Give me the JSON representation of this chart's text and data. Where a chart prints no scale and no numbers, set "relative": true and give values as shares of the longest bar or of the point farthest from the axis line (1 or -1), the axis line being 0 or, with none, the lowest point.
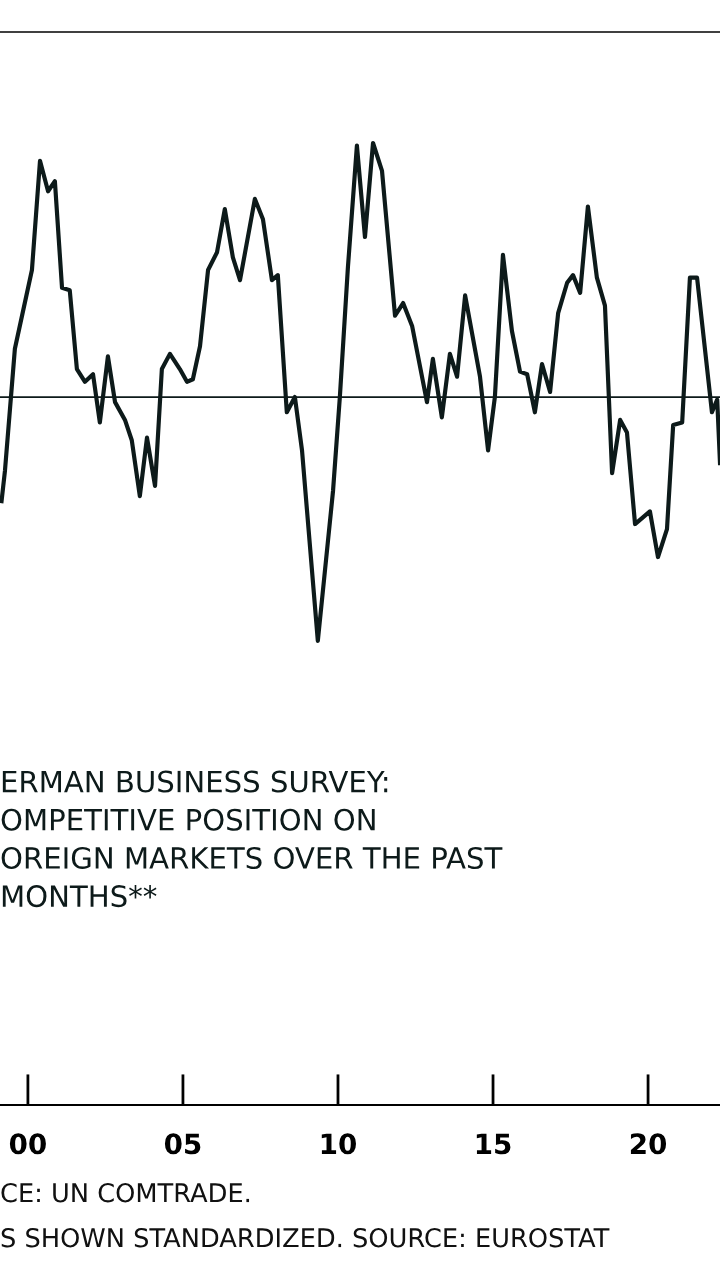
{
  "chart_data": {
    "type": "line",
    "relative": true,
    "xlim": [
      1999.1,
      2022.32
    ],
    "xticks": [
      {
        "value": 2000,
        "label": "00"
      },
      {
        "value": 2005,
        "label": "05"
      },
      {
        "value": 2010,
        "label": "10"
      },
      {
        "value": 2015,
        "label": "15"
      },
      {
        "value": 2020,
        "label": "20"
      }
    ],
    "series": [
      {
        "name": "ERMAN BUSINESS SURVEY:\nOMPETITIVE POSITION ON\nOREIGN MARKETS OVER THE PAST\nMONTHS**",
        "color": "#0d1a1a",
        "x": [
          1999.15,
          1999.26,
          1999.58,
          2000.13,
          2000.39,
          2000.65,
          2000.87,
          2001.1,
          2001.35,
          2001.58,
          2001.84,
          2002.1,
          2002.32,
          2002.58,
          2002.81,
          2003.13,
          2003.35,
          2003.61,
          2003.84,
          2004.1,
          2004.32,
          2004.58,
          2004.9,
          2005.13,
          2005.32,
          2005.55,
          2005.81,
          2006.1,
          2006.35,
          2006.61,
          2006.84,
          2007.32,
          2007.58,
          2007.87,
          2008.06,
          2008.35,
          2008.61,
          2008.84,
          2009.35,
          2009.84,
          2010.06,
          2010.32,
          2010.61,
          2010.87,
          2011.13,
          2011.42,
          2011.84,
          2012.1,
          2012.39,
          2012.87,
          2013.06,
          2013.35,
          2013.61,
          2013.84,
          2014.1,
          2014.58,
          2014.84,
          2015.06,
          2015.32,
          2015.61,
          2015.87,
          2016.1,
          2016.35,
          2016.58,
          2016.84,
          2017.1,
          2017.39,
          2017.58,
          2017.81,
          2018.06,
          2018.35,
          2018.61,
          2018.84,
          2019.1,
          2019.32,
          2019.58,
          2020.06,
          2020.32,
          2020.61,
          2020.81,
          2021.1,
          2021.35,
          2021.58,
          2022.06,
          2022.23,
          2022.32
        ],
        "values": [
          -0.41,
          -0.29,
          0.19,
          0.5,
          0.93,
          0.81,
          0.85,
          0.43,
          0.42,
          0.11,
          0.06,
          0.09,
          -0.1,
          0.16,
          -0.02,
          -0.09,
          -0.17,
          -0.39,
          -0.16,
          -0.35,
          0.11,
          0.17,
          0.11,
          0.06,
          0.07,
          0.2,
          0.5,
          0.57,
          0.74,
          0.55,
          0.46,
          0.78,
          0.7,
          0.46,
          0.48,
          -0.06,
          0.0,
          -0.21,
          -0.96,
          -0.37,
          0.0,
          0.51,
          0.99,
          0.63,
          1.0,
          0.89,
          0.32,
          0.37,
          0.28,
          -0.02,
          0.15,
          -0.08,
          0.17,
          0.08,
          0.4,
          0.08,
          -0.21,
          0.0,
          0.56,
          0.26,
          0.1,
          0.09,
          -0.06,
          0.13,
          0.02,
          0.33,
          0.45,
          0.48,
          0.41,
          0.75,
          0.47,
          0.36,
          -0.3,
          -0.09,
          -0.14,
          -0.5,
          -0.45,
          -0.63,
          -0.52,
          -0.11,
          -0.1,
          0.47,
          0.47,
          -0.06,
          -0.01,
          -0.26
        ]
      }
    ],
    "ref_lines": [
      {
        "axis": "y",
        "value": 0,
        "color": "#0d1a1a"
      }
    ],
    "annotations": [
      "CE: UN COMTRADE.",
      "S SHOWN STANDARDIZED. SOURCE: EUROSTAT"
    ],
    "grid": false,
    "legend": false,
    "marker": "none",
    "line_style": "solid"
  }
}
